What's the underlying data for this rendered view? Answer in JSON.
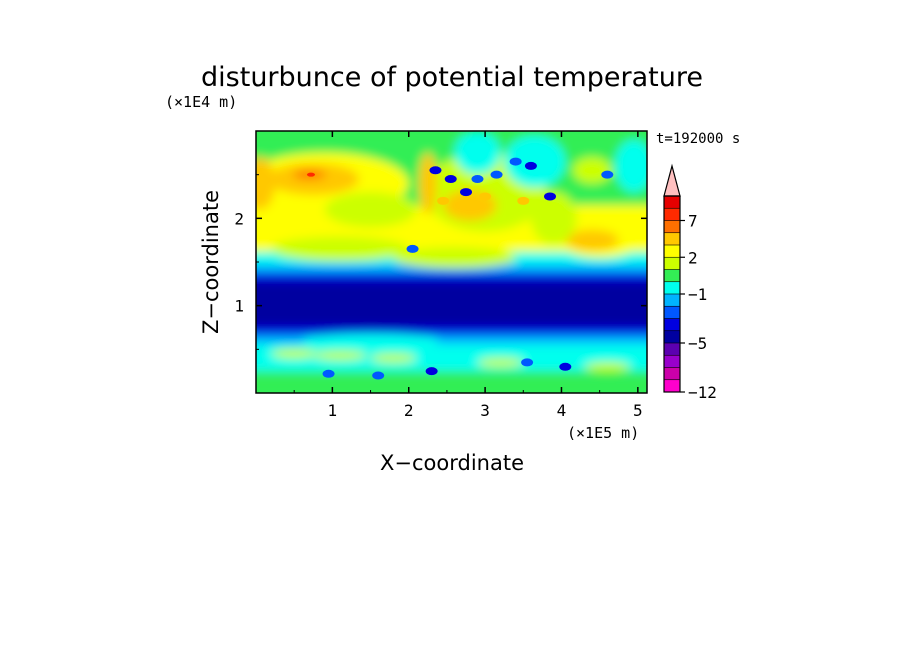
{
  "chart_data": {
    "type": "heatmap",
    "title": "disturbunce of potential temperature",
    "xlabel": "X−coordinate",
    "ylabel": "Z−coordinate",
    "x_unit": "(×1E5 m)",
    "y_unit": "(×1E4 m)",
    "time_label": "t=192000 s",
    "xlim": [
      0,
      5.12
    ],
    "ylim": [
      0,
      3.0
    ],
    "x_ticks": [
      1,
      2,
      3,
      4,
      5
    ],
    "y_ticks": [
      1,
      2
    ],
    "x_tick_labels": [
      "1",
      "2",
      "3",
      "4",
      "5"
    ],
    "y_tick_labels": [
      "1",
      "2"
    ],
    "colorbar": {
      "levels": [
        -12,
        -11,
        -9,
        -7,
        -5,
        -4,
        -3,
        -2,
        -1,
        0,
        1,
        2,
        3,
        5,
        7,
        8,
        9
      ],
      "colors": [
        "#ff00cc",
        "#cc00aa",
        "#9900cc",
        "#5c00b0",
        "#0000a0",
        "#0000e0",
        "#0058ff",
        "#00b4ff",
        "#00ffee",
        "#33ee55",
        "#ccff00",
        "#ffff00",
        "#ffc800",
        "#ff7000",
        "#ff2a00",
        "#e60000",
        "#ff8080",
        "#ffc0c0"
      ],
      "tick_labels": [
        "7",
        "2",
        "−1",
        "−5",
        "−12"
      ],
      "tick_values": [
        7,
        2,
        -1,
        -5,
        -12
      ],
      "extend": "max"
    }
  }
}
